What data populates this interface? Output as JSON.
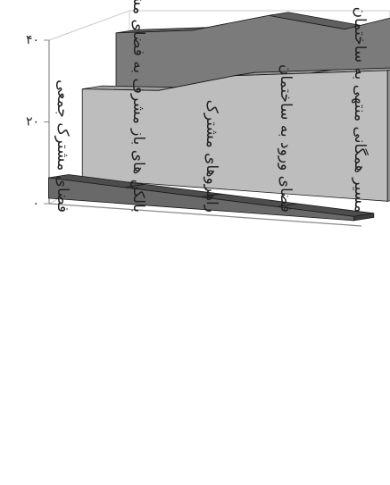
{
  "chart_data": {
    "type": "area",
    "style": "3d-stacked-ribbons",
    "categories": [
      "فضای مشترک جمعی",
      "بالکن های باز مشرف به فضای مشاع",
      "راهروهای مشترک",
      "فضای ورود به ساختمان",
      "مسیر همگانی منتهی به ساختمان"
    ],
    "y_ticks": [
      "۰",
      "۲۰",
      "۴۰"
    ],
    "ylim": [
      0,
      40
    ],
    "grid": false,
    "legend": "none",
    "series": [
      {
        "values": [
          5,
          4,
          3,
          2,
          1
        ],
        "color": "#696969"
      },
      {
        "values": [
          22,
          23,
          28,
          30,
          32
        ],
        "color": "#bdbdbd"
      },
      {
        "values": [
          31,
          33,
          38,
          36,
          42
        ],
        "color": "#7b7b7b"
      }
    ]
  }
}
